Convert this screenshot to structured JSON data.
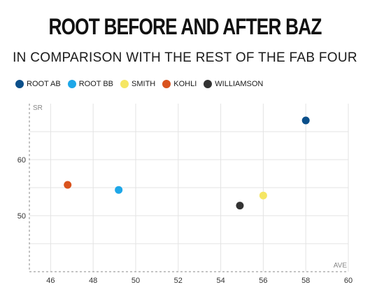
{
  "title": "ROOT BEFORE AND AFTER BAZ",
  "subtitle": "IN COMPARISON WITH THE REST OF THE FAB FOUR",
  "legend": [
    {
      "label": "ROOT AB",
      "color": "#0b4f8a"
    },
    {
      "label": "ROOT BB",
      "color": "#1ea7e8"
    },
    {
      "label": "SMITH",
      "color": "#f5e663"
    },
    {
      "label": "KOHLI",
      "color": "#d9531e"
    },
    {
      "label": "WILLIAMSON",
      "color": "#333333"
    }
  ],
  "chart_data": {
    "type": "scatter",
    "xlabel": "AVE",
    "ylabel": "SR",
    "xlim": [
      45,
      60
    ],
    "ylim": [
      40,
      70
    ],
    "x_ticks": [
      46,
      48,
      50,
      52,
      54,
      56,
      58,
      60
    ],
    "y_ticks": [
      50,
      60
    ],
    "grid": true,
    "legend_position": "top-left",
    "series": [
      {
        "name": "ROOT AB",
        "color": "#0b4f8a",
        "x": 58.0,
        "y": 67.0
      },
      {
        "name": "ROOT BB",
        "color": "#1ea7e8",
        "x": 49.2,
        "y": 54.6
      },
      {
        "name": "SMITH",
        "color": "#f5e663",
        "x": 56.0,
        "y": 53.6
      },
      {
        "name": "KOHLI",
        "color": "#d9531e",
        "x": 46.8,
        "y": 55.5
      },
      {
        "name": "WILLIAMSON",
        "color": "#333333",
        "x": 54.9,
        "y": 51.8
      }
    ]
  }
}
